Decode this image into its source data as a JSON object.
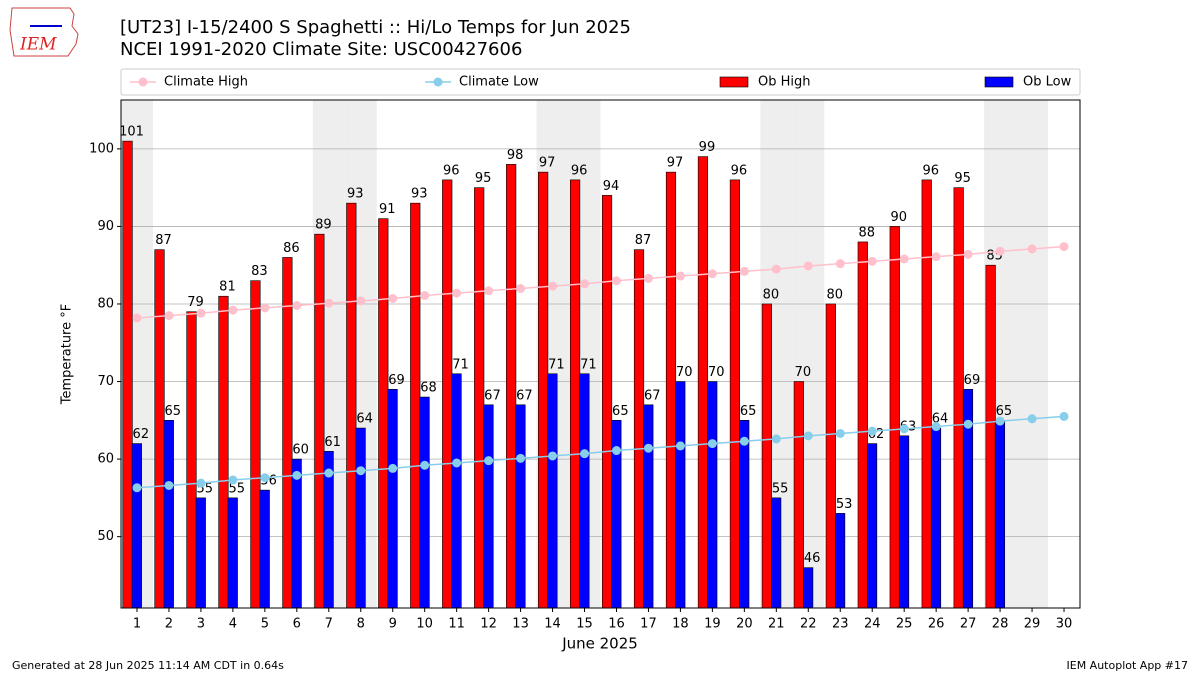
{
  "chart_data": {
    "type": "bar",
    "title": "[UT23] I-15/2400 S Spaghetti  :: Hi/Lo Temps for Jun 2025",
    "subtitle": "NCEI 1991-2020 Climate Site: USC00427606",
    "x_label": "June 2025",
    "y_label": "Temperature °F",
    "logo_text": "IEM",
    "footer_left": "Generated at 28 Jun 2025 11:14 AM CDT in 0.64s",
    "footer_right": "IEM Autoplot App #17",
    "categories": [
      1,
      2,
      3,
      4,
      5,
      6,
      7,
      8,
      9,
      10,
      11,
      12,
      13,
      14,
      15,
      16,
      17,
      18,
      19,
      20,
      21,
      22,
      23,
      24,
      25,
      26,
      27,
      28,
      29,
      30
    ],
    "shaded_days": [
      1,
      7,
      8,
      14,
      15,
      21,
      22,
      28,
      29
    ],
    "series": [
      {
        "name": "Climate High",
        "type": "line",
        "color": "#ffc0cb",
        "values": [
          78.2,
          78.5,
          78.8,
          79.2,
          79.5,
          79.8,
          80.1,
          80.4,
          80.7,
          81.1,
          81.4,
          81.7,
          82.0,
          82.3,
          82.6,
          83.0,
          83.3,
          83.6,
          83.9,
          84.2,
          84.5,
          84.9,
          85.2,
          85.5,
          85.8,
          86.1,
          86.4,
          86.8,
          87.1,
          87.4
        ]
      },
      {
        "name": "Climate Low",
        "type": "line",
        "color": "#87ceeb",
        "values": [
          56.3,
          56.6,
          56.9,
          57.3,
          57.6,
          57.9,
          58.2,
          58.5,
          58.8,
          59.2,
          59.5,
          59.8,
          60.1,
          60.4,
          60.7,
          61.1,
          61.4,
          61.7,
          62.0,
          62.3,
          62.6,
          63.0,
          63.3,
          63.6,
          63.9,
          64.2,
          64.5,
          64.9,
          65.2,
          65.5
        ]
      },
      {
        "name": "Ob High",
        "type": "bar",
        "color": "#ff0000",
        "values": [
          101,
          87,
          79,
          81,
          83,
          86,
          89,
          93,
          91,
          93,
          96,
          95,
          98,
          97,
          96,
          94,
          87,
          97,
          99,
          96,
          80,
          70,
          80,
          88,
          90,
          96,
          95,
          85,
          null,
          null
        ]
      },
      {
        "name": "Ob Low",
        "type": "bar",
        "color": "#0000ff",
        "values": [
          62,
          65,
          55,
          55,
          56,
          60,
          61,
          64,
          69,
          68,
          71,
          67,
          67,
          71,
          71,
          65,
          67,
          70,
          70,
          65,
          55,
          46,
          53,
          62,
          63,
          64,
          69,
          65,
          null,
          null
        ]
      }
    ],
    "ylim": [
      40.8,
      106.3
    ],
    "yticks": [
      50,
      60,
      70,
      80,
      90,
      100
    ],
    "grid": true
  }
}
